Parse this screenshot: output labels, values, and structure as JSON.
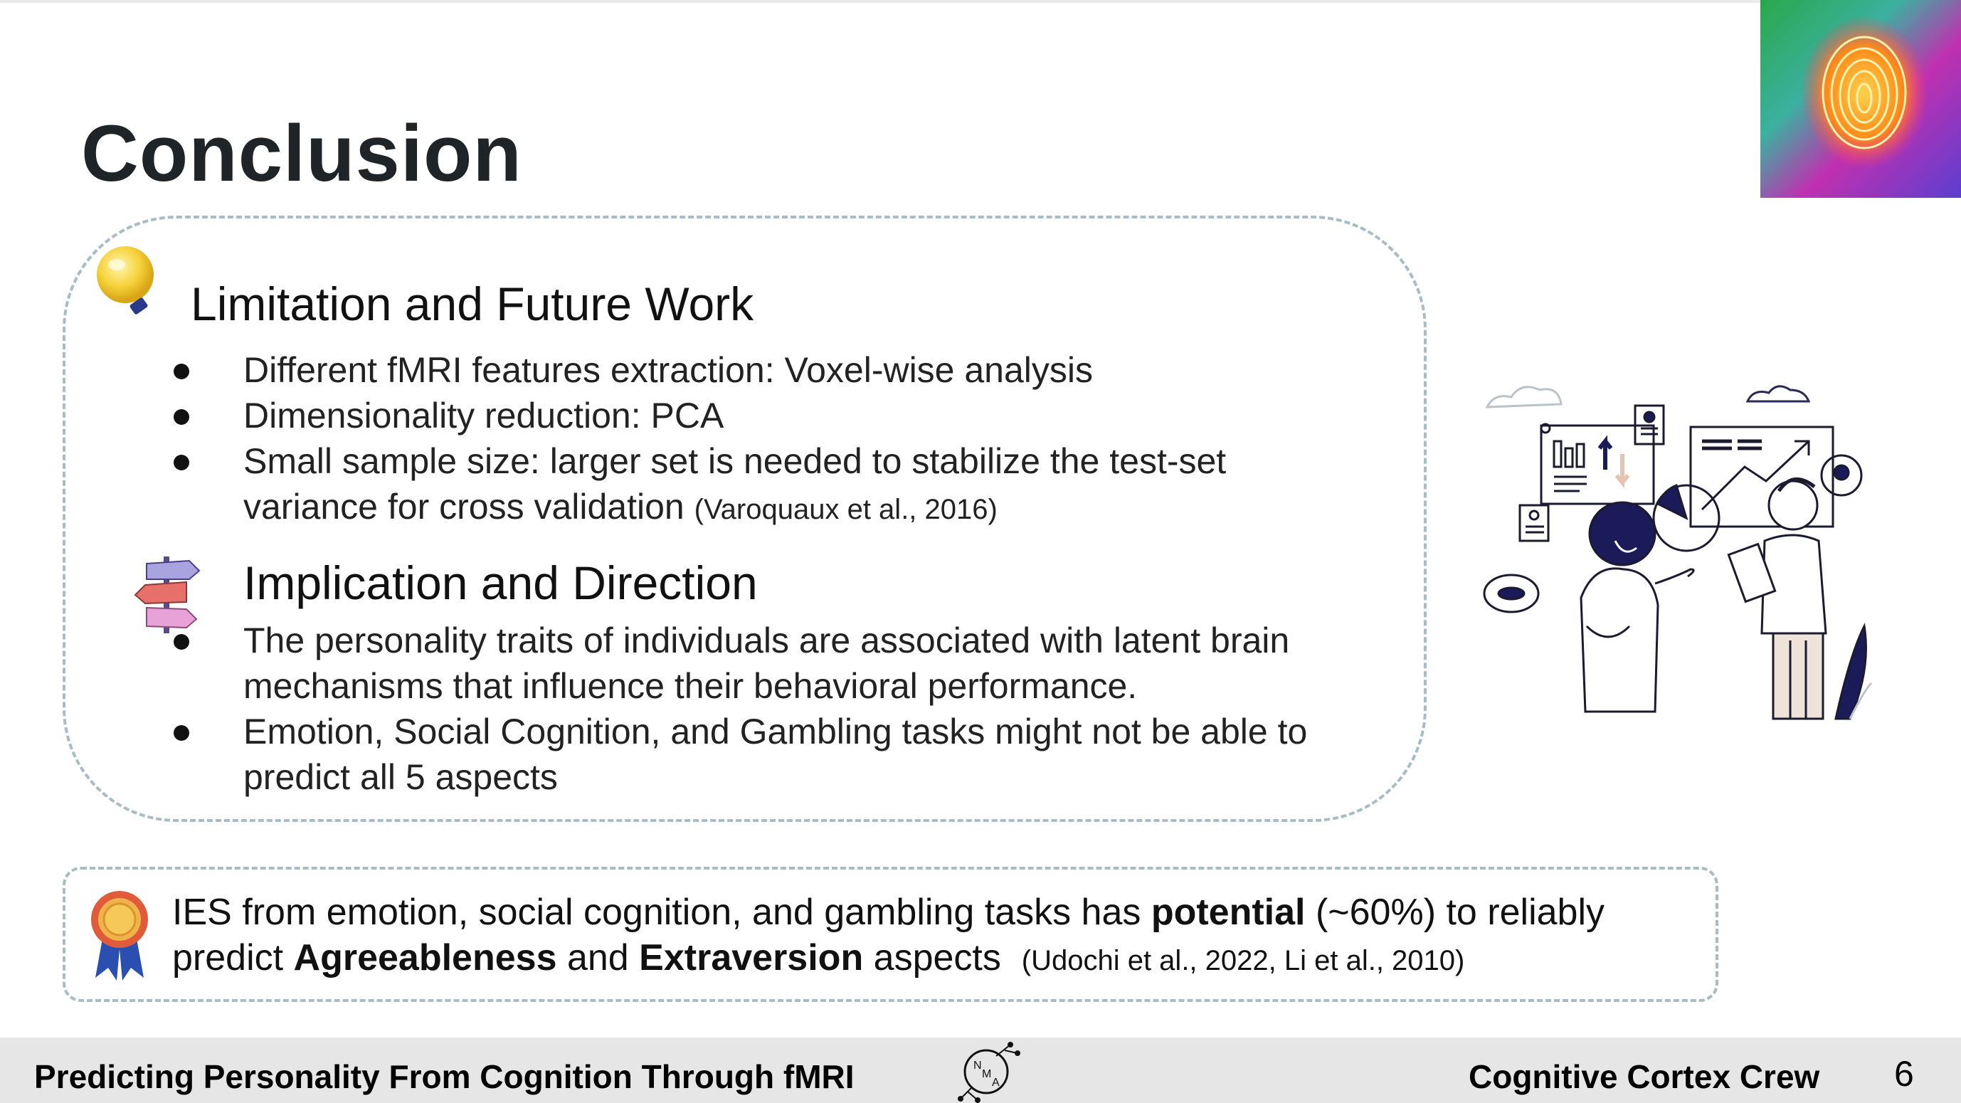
{
  "slide": {
    "title": "Conclusion",
    "limitation": {
      "heading": "Limitation and Future Work",
      "bullets": [
        "Different fMRI features extraction: Voxel-wise analysis",
        "Dimensionality reduction: PCA",
        "Small sample size: larger set is needed to stabilize the test-set variance for cross validation"
      ],
      "citation": "(Varoquaux et al., 2016)"
    },
    "implication": {
      "heading": "Implication and Direction",
      "bullets": [
        "The personality traits of individuals are associated with latent brain mechanisms that influence their behavioral performance.",
        "Emotion, Social Cognition, and Gambling tasks might not be able to predict all 5 aspects"
      ]
    },
    "conclusion": {
      "part1": "IES from emotion, social cognition, and gambling tasks has ",
      "bold1": "potential",
      "part2": " (~60%) to reliably predict ",
      "bold2": "Agreeableness",
      "part3": " and ",
      "bold3": "Extraversion",
      "part4": " aspects",
      "citation": "(Udochi et al., 2022, Li et al., 2010)"
    }
  },
  "footer": {
    "project_title": "Predicting Personality From Cognition Through fMRI",
    "team_name": "Cognitive Cortex Crew",
    "page_number": "6",
    "logo_letters": [
      "N",
      "M",
      "A"
    ]
  },
  "icons": [
    "lightbulb-icon",
    "signpost-icon",
    "award-ribbon-icon",
    "fingerprint-image",
    "nma-logo-icon",
    "data-analysis-illustration"
  ]
}
